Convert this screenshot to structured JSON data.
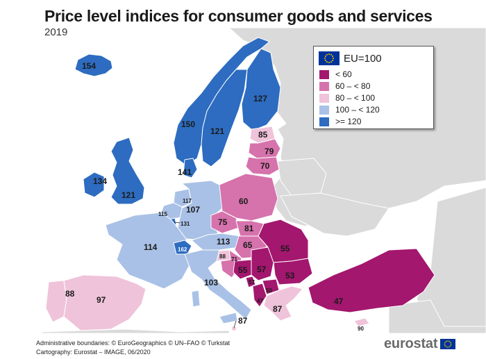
{
  "header": {
    "title": "Price level indices for consumer goods and services",
    "year": "2019"
  },
  "legend": {
    "title": "EU=100",
    "classes": [
      {
        "label": "< 60",
        "color": "#a3176e"
      },
      {
        "label": "60 – < 80",
        "color": "#d672ac"
      },
      {
        "label": "80 – < 100",
        "color": "#efc3da"
      },
      {
        "label": "100 – < 120",
        "color": "#a9c1e6"
      },
      {
        "label": ">= 120",
        "color": "#2d6cc0"
      }
    ]
  },
  "colors": {
    "non_eu_land": "#dadada",
    "sea": "#ffffff",
    "border": "#ffffff",
    "eu_blue": "#003399",
    "eu_star": "#ffcc00"
  },
  "map_labels": [
    {
      "id": "iceland",
      "value": "154"
    },
    {
      "id": "norway",
      "value": "150"
    },
    {
      "id": "sweden",
      "value": "121"
    },
    {
      "id": "finland",
      "value": "127"
    },
    {
      "id": "estonia",
      "value": "85"
    },
    {
      "id": "latvia",
      "value": "79"
    },
    {
      "id": "lithuania",
      "value": "70"
    },
    {
      "id": "denmark",
      "value": "141"
    },
    {
      "id": "ireland",
      "value": "134"
    },
    {
      "id": "united-kingdom",
      "value": "121"
    },
    {
      "id": "netherlands",
      "value": "117"
    },
    {
      "id": "belgium",
      "value": "115"
    },
    {
      "id": "luxembourg",
      "value": "131"
    },
    {
      "id": "germany",
      "value": "107"
    },
    {
      "id": "poland",
      "value": "60"
    },
    {
      "id": "czechia",
      "value": "75"
    },
    {
      "id": "slovakia",
      "value": "81"
    },
    {
      "id": "france",
      "value": "114"
    },
    {
      "id": "switzerland",
      "value": "162"
    },
    {
      "id": "austria",
      "value": "113"
    },
    {
      "id": "hungary",
      "value": "65"
    },
    {
      "id": "romania",
      "value": "55"
    },
    {
      "id": "slovenia",
      "value": "88"
    },
    {
      "id": "croatia",
      "value": "71"
    },
    {
      "id": "bosnia",
      "value": "55"
    },
    {
      "id": "serbia",
      "value": "57"
    },
    {
      "id": "montenegro",
      "value": "57"
    },
    {
      "id": "north-macedonia",
      "value": "50"
    },
    {
      "id": "albania",
      "value": "47"
    },
    {
      "id": "bulgaria",
      "value": "53"
    },
    {
      "id": "greece",
      "value": "87"
    },
    {
      "id": "turkey",
      "value": "47"
    },
    {
      "id": "cyprus",
      "value": "90"
    },
    {
      "id": "italy",
      "value": "103"
    },
    {
      "id": "malta",
      "value": "87"
    },
    {
      "id": "portugal",
      "value": "88"
    },
    {
      "id": "spain",
      "value": "97"
    }
  ],
  "credits": {
    "line1": "Administrative boundaries: © EuroGeographics © UN–FAO © Turkstat",
    "line2": "Cartography: Eurostat – IMAGE, 06/2020"
  },
  "brand": {
    "name": "eurostat"
  }
}
